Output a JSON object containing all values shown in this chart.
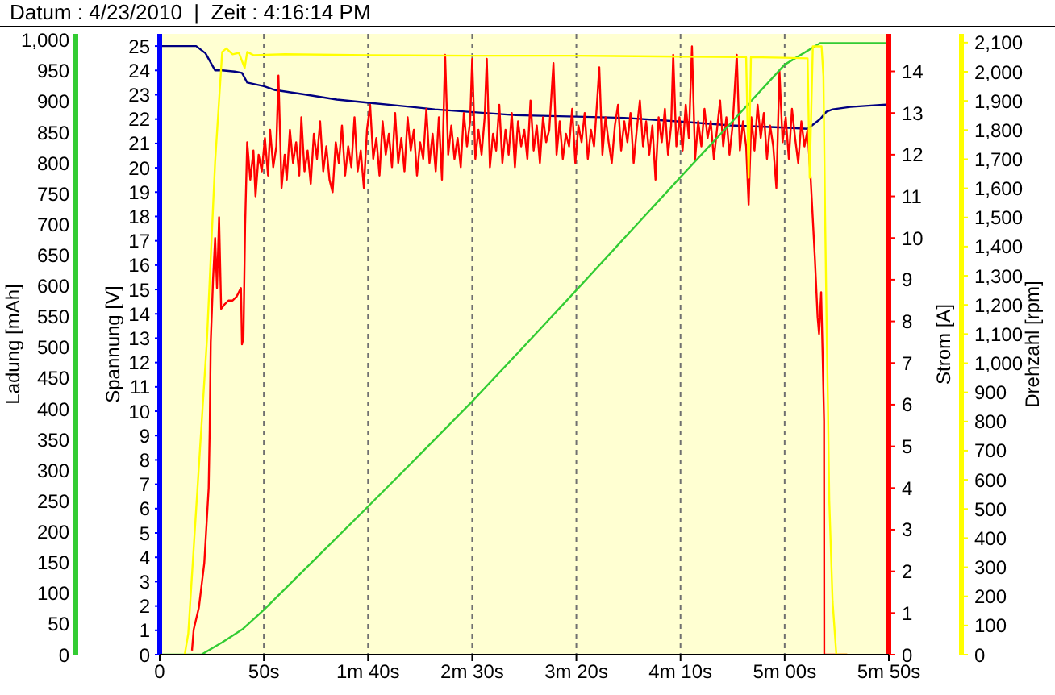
{
  "chart_data": [
    {
      "type": "line",
      "title": "Datum : 4/23/2010  |  Zeit : 4:16:14 PM",
      "ylabel": "Ladung [mAh]",
      "y2label": "Spannung [V]",
      "y3label": "Strom [A]",
      "xlim": [
        0,
        350
      ],
      "xticks": [
        0,
        {
          "value": 50,
          "label": "50s"
        },
        {
          "value": 100,
          "label": "1m 40s"
        },
        {
          "value": 150,
          "label": "2m 30s"
        },
        {
          "value": 200,
          "label": "3m 20s"
        },
        {
          "value": 250,
          "label": "4m 10s"
        },
        {
          "value": 300,
          "label": "5m 00s"
        },
        {
          "value": 350,
          "label": "5m 50s"
        }
      ],
      "ylim": [
        0,
        1010
      ],
      "yticks": [
        0,
        50,
        100,
        150,
        200,
        250,
        300,
        350,
        400,
        450,
        500,
        550,
        600,
        650,
        700,
        750,
        800,
        850,
        900,
        950,
        {
          "value": 1000,
          "label": "1,000"
        }
      ],
      "y2lim": [
        0,
        25.5
      ],
      "y2ticks": [
        0,
        1,
        2,
        3,
        4,
        5,
        6,
        7,
        8,
        9,
        10,
        11,
        12,
        13,
        14,
        15,
        16,
        17,
        18,
        19,
        20,
        21,
        22,
        23,
        24,
        25
      ],
      "y3lim": [
        0,
        14.9
      ],
      "y3ticks": [
        0,
        1,
        2,
        3,
        4,
        5,
        6,
        7,
        8,
        9,
        10,
        11,
        12,
        13,
        14
      ],
      "grid": "x",
      "series": [
        {
          "color": "#000080",
          "axis": "y2",
          "x": [
            0,
            17.5,
            22,
            26.6,
            30,
            36,
            39.5,
            42,
            50,
            55,
            70.5,
            85,
            101.5,
            115,
            132,
            148,
            171,
            200,
            223,
            250,
            274,
            300,
            311,
            314,
            317,
            320,
            323,
            331.5,
            340,
            350
          ],
          "values": [
            25.0,
            25.0,
            24.7,
            24.0,
            24.0,
            23.95,
            23.9,
            23.5,
            23.35,
            23.2,
            23.0,
            22.8,
            22.66,
            22.55,
            22.4,
            22.3,
            22.16,
            22.1,
            22.05,
            21.9,
            21.74,
            21.65,
            21.6,
            21.8,
            22.0,
            22.3,
            22.4,
            22.5,
            22.55,
            22.6
          ]
        },
        {
          "color": "#ff0000",
          "axis": "y3",
          "x": [
            15.5,
            16.3,
            18.8,
            21.4,
            23.5,
            24,
            24.5,
            25.6,
            26.6,
            27.5,
            28.5,
            29.5,
            31,
            33,
            35,
            37,
            38,
            39,
            39.5,
            40.2,
            41,
            42,
            43.5,
            45,
            46,
            47.5,
            49,
            50.5,
            52,
            53,
            54.5,
            56,
            57,
            58.5,
            60,
            61,
            62.5,
            64,
            65.5,
            67,
            68,
            69.5,
            71,
            72.5,
            74,
            75.5,
            77,
            78.5,
            80,
            81.5,
            83,
            84.5,
            86,
            87.5,
            89,
            90.5,
            92,
            93.5,
            95,
            96.5,
            98,
            99.5,
            101,
            102.5,
            104,
            105.5,
            107,
            108.5,
            110,
            111.5,
            113,
            114.5,
            116,
            117.5,
            119,
            120.5,
            122,
            123.5,
            125,
            126.5,
            128,
            129.5,
            131,
            132.5,
            134,
            135.5,
            137,
            138.5,
            140,
            141.5,
            143,
            144.5,
            146,
            147.5,
            149,
            150,
            151.5,
            153,
            154.5,
            156,
            157,
            158.5,
            160,
            161.5,
            163,
            164.5,
            166,
            167.5,
            169,
            170.5,
            172,
            173.5,
            175,
            176.5,
            178,
            179.5,
            181,
            182.5,
            184,
            185.5,
            187,
            189,
            190.5,
            192,
            193.5,
            195,
            196.5,
            198,
            199.5,
            201,
            202.5,
            204,
            205.5,
            207,
            208.5,
            210,
            211,
            212.5,
            214,
            215.5,
            217,
            218.5,
            220,
            221.5,
            223,
            224.5,
            226,
            227.5,
            229,
            230.5,
            232,
            233.5,
            235,
            236.5,
            238,
            239.5,
            241,
            242.5,
            244,
            245.5,
            246.5,
            248,
            249.5,
            251,
            252.5,
            254,
            255.5,
            257,
            258.5,
            260,
            261.5,
            263,
            264.5,
            266,
            267.5,
            269,
            270.5,
            272,
            273.5,
            275,
            277,
            278.5,
            280,
            281.5,
            282.7,
            284,
            285.5,
            287,
            288.5,
            290,
            291.5,
            293,
            294.5,
            296,
            297.5,
            299,
            300.5,
            302,
            303.5,
            305,
            306.5,
            308,
            309.5,
            311,
            312.5,
            314.5,
            315.8,
            316.5,
            317.5,
            318.3,
            318.9,
            319,
            330
          ],
          "values": [
            0.1,
            0.6,
            1.13,
            2.2,
            4.0,
            5.4,
            7.5,
            9.0,
            10.0,
            8.8,
            10.5,
            8.3,
            8.4,
            8.5,
            8.5,
            8.6,
            8.7,
            8.8,
            7.45,
            7.6,
            10.3,
            12.3,
            11.4,
            12.1,
            11.0,
            12.0,
            11.6,
            12.4,
            11.5,
            12.6,
            11.7,
            12.2,
            13.9,
            11.2,
            12.0,
            11.4,
            12.6,
            11.8,
            12.3,
            11.5,
            12.9,
            11.6,
            12.1,
            11.3,
            12.5,
            11.9,
            12.8,
            11.6,
            12.2,
            11.4,
            11.1,
            12.3,
            11.8,
            12.7,
            11.5,
            12.2,
            11.7,
            12.9,
            11.6,
            12.1,
            11.2,
            12.6,
            13.2,
            11.9,
            12.4,
            11.5,
            12.8,
            12.0,
            12.5,
            11.7,
            13.0,
            11.8,
            12.4,
            11.6,
            12.9,
            12.1,
            12.6,
            11.5,
            12.3,
            11.9,
            13.1,
            11.8,
            12.5,
            11.6,
            12.9,
            11.4,
            14.4,
            12.0,
            12.7,
            11.9,
            12.4,
            11.7,
            13.0,
            12.2,
            12.8,
            14.3,
            11.9,
            12.6,
            12.0,
            12.9,
            14.3,
            11.7,
            12.5,
            12.1,
            13.2,
            11.8,
            12.6,
            12.0,
            13.0,
            11.7,
            12.8,
            12.2,
            12.6,
            11.9,
            13.3,
            12.1,
            12.7,
            11.8,
            12.9,
            12.3,
            12.6,
            14.2,
            12.0,
            12.8,
            11.9,
            12.5,
            12.2,
            13.1,
            11.8,
            12.7,
            12.3,
            13.0,
            11.9,
            12.6,
            12.2,
            13.3,
            14.1,
            12.0,
            12.9,
            12.3,
            11.8,
            12.7,
            13.2,
            12.1,
            12.8,
            12.3,
            13.0,
            11.8,
            12.6,
            13.3,
            12.2,
            12.8,
            12.0,
            12.7,
            11.4,
            12.9,
            12.3,
            13.1,
            12.0,
            12.7,
            14.4,
            12.2,
            12.9,
            12.1,
            13.2,
            12.4,
            14.6,
            11.9,
            12.8,
            12.2,
            13.1,
            12.4,
            12.8,
            11.9,
            12.6,
            13.3,
            12.2,
            12.9,
            12.0,
            12.7,
            14.4,
            12.1,
            12.8,
            12.2,
            10.8,
            12.9,
            12.1,
            13.2,
            12.4,
            13.0,
            11.9,
            12.7,
            12.2,
            11.2,
            14.0,
            12.3,
            12.9,
            11.9,
            13.1,
            12.4,
            11.8,
            12.8,
            12.2,
            12.6,
            11.4,
            9.5,
            8.1,
            7.7,
            8.7,
            7.0,
            5.6,
            0,
            0
          ]
        },
        {
          "color": "#33cc33",
          "x": [
            0,
            20,
            30,
            40,
            50,
            75,
            100,
            125,
            150,
            175,
            200,
            225,
            250,
            275,
            300,
            317,
            350
          ],
          "values": [
            0,
            0,
            20,
            42,
            73,
            157,
            241,
            326,
            412,
            502,
            593,
            685,
            777,
            868,
            960,
            995,
            995
          ]
        }
      ]
    },
    {
      "type": "line",
      "ylabel": "Drehzahl [rpm]",
      "xlim": [
        0,
        350
      ],
      "tick_labels": "y",
      "ylim": [
        0,
        2130
      ],
      "yticks": [
        0,
        100,
        200,
        300,
        400,
        500,
        600,
        700,
        800,
        900,
        {
          "value": 1000,
          "label": "1,000"
        },
        {
          "value": 1100,
          "label": "1,100"
        },
        {
          "value": 1200,
          "label": "1,200"
        },
        {
          "value": 1300,
          "label": "1,300"
        },
        {
          "value": 1400,
          "label": "1,400"
        },
        {
          "value": 1500,
          "label": "1,500"
        },
        {
          "value": 1600,
          "label": "1,600"
        },
        {
          "value": 1700,
          "label": "1,700"
        },
        {
          "value": 1800,
          "label": "1,800"
        },
        {
          "value": 1900,
          "label": "1,900"
        },
        {
          "value": 2000,
          "label": "2,000"
        },
        {
          "value": 2100,
          "label": "2,100"
        }
      ],
      "series": [
        {
          "color": "#ffff00",
          "x": [
            12,
            13.7,
            22.7,
            26.6,
            30,
            32,
            35,
            38,
            40.8,
            42,
            45,
            60,
            100,
            150,
            200,
            250,
            281.5,
            282.7,
            283.8,
            300,
            311,
            312,
            313.5,
            317.7,
            318.6,
            319.4,
            320.2,
            320.8,
            321.4,
            323,
            324.8,
            330
          ],
          "values": [
            0,
            72,
            1083,
            1691,
            2068,
            2080,
            2060,
            2065,
            2013,
            2068,
            2057,
            2060,
            2057,
            2055,
            2055,
            2052,
            2050,
            1636,
            2050,
            2048,
            2046,
            1636,
            2087,
            2087,
            1985,
            1508,
            1101,
            845,
            530,
            182,
            0,
            0
          ]
        }
      ]
    }
  ]
}
